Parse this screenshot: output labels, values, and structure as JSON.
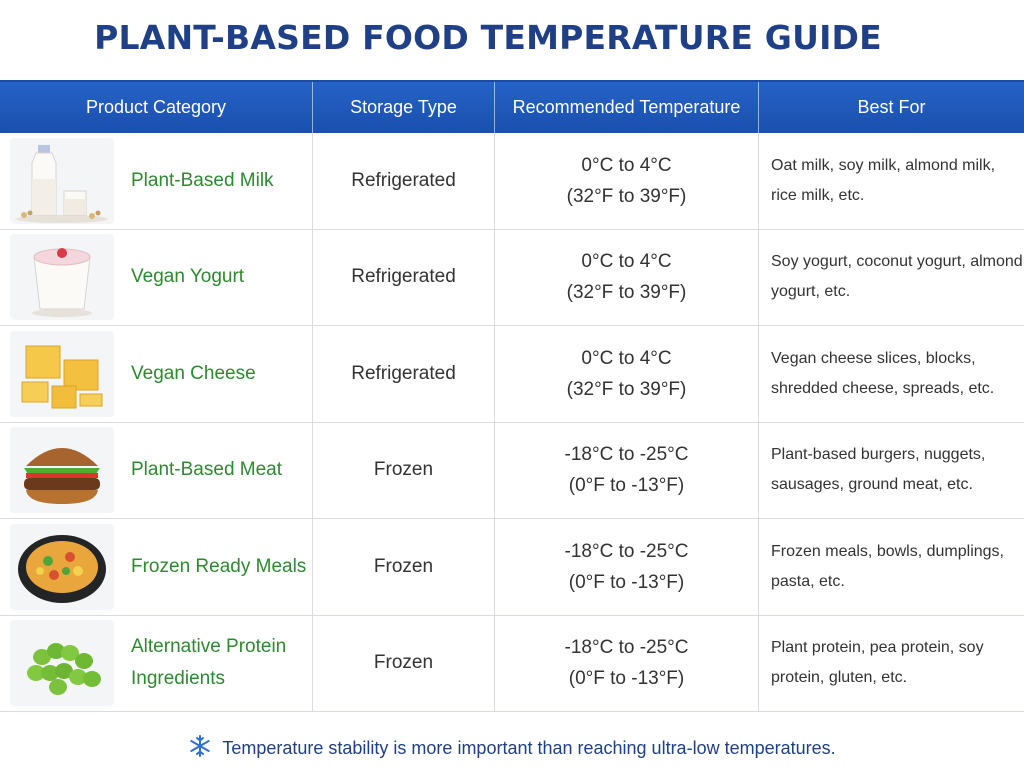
{
  "title": "PLANT-BASED FOOD TEMPERATURE GUIDE",
  "headers": [
    "Product Category",
    "Storage Type",
    "Recommended Temperature",
    "Best For"
  ],
  "rows": [
    {
      "icon": "milk-bottle-icon",
      "category": "Plant-Based Milk",
      "storage": "Refrigerated",
      "temp_c": "0°C to 4°C",
      "temp_f": "(32°F to 39°F)",
      "best_for": "Oat milk, soy milk, almond milk, rice milk, etc."
    },
    {
      "icon": "yogurt-cup-icon",
      "category": "Vegan Yogurt",
      "storage": "Refrigerated",
      "temp_c": "0°C to 4°C",
      "temp_f": "(32°F to 39°F)",
      "best_for": "Soy yogurt, coconut yogurt, almond yogurt, etc."
    },
    {
      "icon": "cheese-blocks-icon",
      "category": "Vegan Cheese",
      "storage": "Refrigerated",
      "temp_c": "0°C to 4°C",
      "temp_f": "(32°F to 39°F)",
      "best_for": "Vegan cheese slices, blocks, shredded cheese, spreads, etc."
    },
    {
      "icon": "burger-icon",
      "category": "Plant-Based Meat",
      "storage": "Frozen",
      "temp_c": "-18°C to -25°C",
      "temp_f": "(0°F to -13°F)",
      "best_for": "Plant-based burgers, nuggets, sausages, ground meat, etc."
    },
    {
      "icon": "meal-bowl-icon",
      "category": "Frozen Ready Meals",
      "storage": "Frozen",
      "temp_c": "-18°C to -25°C",
      "temp_f": "(0°F to -13°F)",
      "best_for": "Frozen meals, bowls, dumplings, pasta, etc."
    },
    {
      "icon": "edamame-icon",
      "category": "Alternative Protein Ingredients",
      "storage": "Frozen",
      "temp_c": "-18°C to -25°C",
      "temp_f": "(0°F to -13°F)",
      "best_for": "Plant protein, pea protein, soy protein, gluten, etc."
    }
  ],
  "footer": {
    "icon": "snowflake-icon",
    "text": "Temperature stability is more important than reaching ultra-low temperatures."
  },
  "colors": {
    "title": "#1f3f86",
    "header_bg": "#1f5bbf",
    "category_text": "#2c8a2f"
  }
}
